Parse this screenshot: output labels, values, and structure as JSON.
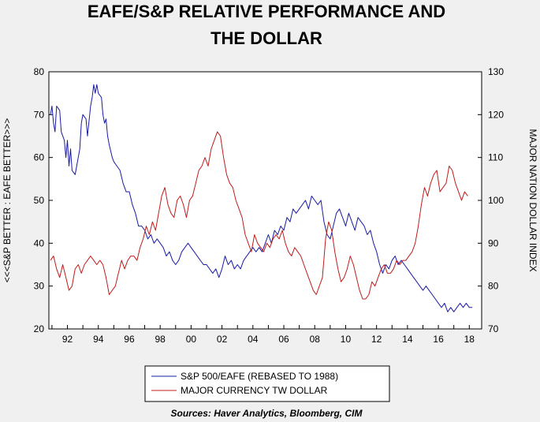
{
  "chart_data": {
    "type": "line",
    "title_lines": [
      "EAFE/S&P RELATIVE PERFORMANCE AND",
      "THE DOLLAR"
    ],
    "ylabel_left": "<<<S&P BETTER : EAFE BETTER>>>",
    "ylabel_right": "MAJOR NATION DOLLAR INDEX",
    "ylim_left": [
      20,
      80
    ],
    "ylim_right": [
      70,
      130
    ],
    "yticks_left": [
      20,
      30,
      40,
      50,
      60,
      70,
      80
    ],
    "yticks_right": [
      70,
      80,
      90,
      100,
      110,
      120,
      130
    ],
    "xlim": [
      1990.8,
      2018.8
    ],
    "xticks": [
      {
        "x": 1992,
        "label": "92"
      },
      {
        "x": 1994,
        "label": "94"
      },
      {
        "x": 1996,
        "label": "96"
      },
      {
        "x": 1998,
        "label": "98"
      },
      {
        "x": 2000,
        "label": "00"
      },
      {
        "x": 2002,
        "label": "02"
      },
      {
        "x": 2004,
        "label": "04"
      },
      {
        "x": 2006,
        "label": "06"
      },
      {
        "x": 2008,
        "label": "08"
      },
      {
        "x": 2010,
        "label": "10"
      },
      {
        "x": 2012,
        "label": "12"
      },
      {
        "x": 2014,
        "label": "14"
      },
      {
        "x": 2016,
        "label": "16"
      },
      {
        "x": 2018,
        "label": "18"
      }
    ],
    "grid": false,
    "legend_position": "bottom",
    "series": [
      {
        "name": "S&P 500/EAFE (REBASED TO 1988)",
        "color": "#1a1aa6",
        "axis": "left",
        "points": [
          [
            1990.9,
            70
          ],
          [
            1991.0,
            72
          ],
          [
            1991.1,
            68
          ],
          [
            1991.2,
            66
          ],
          [
            1991.3,
            72
          ],
          [
            1991.5,
            71
          ],
          [
            1991.6,
            66
          ],
          [
            1991.8,
            64
          ],
          [
            1991.9,
            60
          ],
          [
            1992.0,
            64
          ],
          [
            1992.1,
            58
          ],
          [
            1992.2,
            62
          ],
          [
            1992.3,
            57
          ],
          [
            1992.5,
            56
          ],
          [
            1992.6,
            58
          ],
          [
            1992.8,
            62
          ],
          [
            1992.9,
            68
          ],
          [
            1993.0,
            70
          ],
          [
            1993.2,
            69
          ],
          [
            1993.3,
            65
          ],
          [
            1993.5,
            72
          ],
          [
            1993.6,
            74
          ],
          [
            1993.7,
            77
          ],
          [
            1993.8,
            75
          ],
          [
            1993.9,
            77
          ],
          [
            1994.0,
            75
          ],
          [
            1994.2,
            74
          ],
          [
            1994.3,
            70
          ],
          [
            1994.4,
            68
          ],
          [
            1994.5,
            69
          ],
          [
            1994.6,
            65
          ],
          [
            1994.7,
            63
          ],
          [
            1994.9,
            60
          ],
          [
            1995.0,
            59
          ],
          [
            1995.2,
            58
          ],
          [
            1995.4,
            57
          ],
          [
            1995.6,
            54
          ],
          [
            1995.8,
            52
          ],
          [
            1996.0,
            52
          ],
          [
            1996.2,
            49
          ],
          [
            1996.4,
            47
          ],
          [
            1996.6,
            44
          ],
          [
            1996.8,
            44
          ],
          [
            1997.0,
            43
          ],
          [
            1997.2,
            41
          ],
          [
            1997.4,
            42
          ],
          [
            1997.6,
            40
          ],
          [
            1997.8,
            41
          ],
          [
            1998.0,
            40
          ],
          [
            1998.2,
            39
          ],
          [
            1998.4,
            37
          ],
          [
            1998.6,
            38
          ],
          [
            1998.8,
            36
          ],
          [
            1999.0,
            35
          ],
          [
            1999.2,
            36
          ],
          [
            1999.4,
            38
          ],
          [
            1999.6,
            39
          ],
          [
            1999.8,
            40
          ],
          [
            2000.0,
            39
          ],
          [
            2000.2,
            38
          ],
          [
            2000.4,
            37
          ],
          [
            2000.6,
            36
          ],
          [
            2000.8,
            35
          ],
          [
            2001.0,
            35
          ],
          [
            2001.2,
            34
          ],
          [
            2001.4,
            33
          ],
          [
            2001.6,
            34
          ],
          [
            2001.8,
            32
          ],
          [
            2002.0,
            34
          ],
          [
            2002.2,
            37
          ],
          [
            2002.4,
            35
          ],
          [
            2002.6,
            36
          ],
          [
            2002.8,
            34
          ],
          [
            2003.0,
            35
          ],
          [
            2003.2,
            34
          ],
          [
            2003.4,
            36
          ],
          [
            2003.6,
            37
          ],
          [
            2003.8,
            38
          ],
          [
            2004.0,
            39
          ],
          [
            2004.2,
            38
          ],
          [
            2004.4,
            39
          ],
          [
            2004.6,
            38
          ],
          [
            2004.8,
            40
          ],
          [
            2005.0,
            42
          ],
          [
            2005.2,
            40
          ],
          [
            2005.4,
            43
          ],
          [
            2005.6,
            42
          ],
          [
            2005.8,
            44
          ],
          [
            2006.0,
            43
          ],
          [
            2006.2,
            46
          ],
          [
            2006.4,
            45
          ],
          [
            2006.6,
            48
          ],
          [
            2006.8,
            47
          ],
          [
            2007.0,
            48
          ],
          [
            2007.2,
            49
          ],
          [
            2007.4,
            50
          ],
          [
            2007.6,
            48
          ],
          [
            2007.8,
            51
          ],
          [
            2008.0,
            50
          ],
          [
            2008.2,
            49
          ],
          [
            2008.4,
            50
          ],
          [
            2008.6,
            45
          ],
          [
            2008.8,
            42
          ],
          [
            2009.0,
            41
          ],
          [
            2009.2,
            44
          ],
          [
            2009.4,
            47
          ],
          [
            2009.6,
            48
          ],
          [
            2009.8,
            46
          ],
          [
            2010.0,
            44
          ],
          [
            2010.2,
            47
          ],
          [
            2010.4,
            45
          ],
          [
            2010.6,
            43
          ],
          [
            2010.8,
            46
          ],
          [
            2011.0,
            45
          ],
          [
            2011.2,
            44
          ],
          [
            2011.4,
            42
          ],
          [
            2011.6,
            43
          ],
          [
            2011.8,
            40
          ],
          [
            2012.0,
            38
          ],
          [
            2012.2,
            35
          ],
          [
            2012.4,
            33
          ],
          [
            2012.6,
            35
          ],
          [
            2012.8,
            34
          ],
          [
            2013.0,
            36
          ],
          [
            2013.2,
            37
          ],
          [
            2013.4,
            35
          ],
          [
            2013.6,
            36
          ],
          [
            2013.8,
            35
          ],
          [
            2014.0,
            34
          ],
          [
            2014.2,
            33
          ],
          [
            2014.4,
            32
          ],
          [
            2014.6,
            31
          ],
          [
            2014.8,
            30
          ],
          [
            2015.0,
            29
          ],
          [
            2015.2,
            30
          ],
          [
            2015.4,
            29
          ],
          [
            2015.6,
            28
          ],
          [
            2015.8,
            27
          ],
          [
            2016.0,
            26
          ],
          [
            2016.2,
            25
          ],
          [
            2016.4,
            26
          ],
          [
            2016.6,
            24
          ],
          [
            2016.8,
            25
          ],
          [
            2017.0,
            24
          ],
          [
            2017.2,
            25
          ],
          [
            2017.4,
            26
          ],
          [
            2017.6,
            25
          ],
          [
            2017.8,
            26
          ],
          [
            2018.0,
            25
          ],
          [
            2018.2,
            25
          ]
        ]
      },
      {
        "name": "MAJOR CURRENCY TW DOLLAR",
        "color": "#c01c1c",
        "axis": "right",
        "points": [
          [
            1990.9,
            86
          ],
          [
            1991.1,
            87
          ],
          [
            1991.3,
            84
          ],
          [
            1991.5,
            82
          ],
          [
            1991.7,
            85
          ],
          [
            1991.9,
            82
          ],
          [
            1992.1,
            79
          ],
          [
            1992.3,
            80
          ],
          [
            1992.5,
            84
          ],
          [
            1992.7,
            85
          ],
          [
            1992.9,
            83
          ],
          [
            1993.1,
            85
          ],
          [
            1993.3,
            86
          ],
          [
            1993.5,
            87
          ],
          [
            1993.7,
            86
          ],
          [
            1993.9,
            85
          ],
          [
            1994.1,
            86
          ],
          [
            1994.3,
            85
          ],
          [
            1994.5,
            82
          ],
          [
            1994.7,
            78
          ],
          [
            1994.9,
            79
          ],
          [
            1995.1,
            80
          ],
          [
            1995.3,
            83
          ],
          [
            1995.5,
            86
          ],
          [
            1995.7,
            84
          ],
          [
            1995.9,
            86
          ],
          [
            1996.1,
            87
          ],
          [
            1996.3,
            87
          ],
          [
            1996.5,
            86
          ],
          [
            1996.7,
            89
          ],
          [
            1996.9,
            91
          ],
          [
            1997.1,
            94
          ],
          [
            1997.3,
            92
          ],
          [
            1997.5,
            95
          ],
          [
            1997.7,
            93
          ],
          [
            1997.9,
            97
          ],
          [
            1998.1,
            101
          ],
          [
            1998.3,
            103
          ],
          [
            1998.5,
            99
          ],
          [
            1998.7,
            97
          ],
          [
            1998.9,
            96
          ],
          [
            1999.1,
            100
          ],
          [
            1999.3,
            101
          ],
          [
            1999.5,
            99
          ],
          [
            1999.7,
            96
          ],
          [
            1999.9,
            100
          ],
          [
            2000.1,
            101
          ],
          [
            2000.3,
            104
          ],
          [
            2000.5,
            107
          ],
          [
            2000.7,
            108
          ],
          [
            2000.9,
            110
          ],
          [
            2001.1,
            108
          ],
          [
            2001.3,
            112
          ],
          [
            2001.5,
            114
          ],
          [
            2001.7,
            116
          ],
          [
            2001.9,
            115
          ],
          [
            2002.1,
            110
          ],
          [
            2002.3,
            106
          ],
          [
            2002.5,
            104
          ],
          [
            2002.7,
            103
          ],
          [
            2002.9,
            100
          ],
          [
            2003.1,
            98
          ],
          [
            2003.3,
            96
          ],
          [
            2003.5,
            92
          ],
          [
            2003.7,
            90
          ],
          [
            2003.9,
            88
          ],
          [
            2004.1,
            92
          ],
          [
            2004.3,
            90
          ],
          [
            2004.5,
            89
          ],
          [
            2004.7,
            88
          ],
          [
            2004.9,
            90
          ],
          [
            2005.1,
            89
          ],
          [
            2005.3,
            91
          ],
          [
            2005.5,
            92
          ],
          [
            2005.7,
            91
          ],
          [
            2005.9,
            93
          ],
          [
            2006.1,
            90
          ],
          [
            2006.3,
            88
          ],
          [
            2006.5,
            87
          ],
          [
            2006.7,
            89
          ],
          [
            2006.9,
            88
          ],
          [
            2007.1,
            87
          ],
          [
            2007.3,
            85
          ],
          [
            2007.5,
            83
          ],
          [
            2007.7,
            81
          ],
          [
            2007.9,
            79
          ],
          [
            2008.1,
            78
          ],
          [
            2008.3,
            80
          ],
          [
            2008.5,
            82
          ],
          [
            2008.7,
            91
          ],
          [
            2008.9,
            95
          ],
          [
            2009.1,
            93
          ],
          [
            2009.3,
            88
          ],
          [
            2009.5,
            84
          ],
          [
            2009.7,
            81
          ],
          [
            2009.9,
            82
          ],
          [
            2010.1,
            84
          ],
          [
            2010.3,
            87
          ],
          [
            2010.5,
            85
          ],
          [
            2010.7,
            82
          ],
          [
            2010.9,
            79
          ],
          [
            2011.1,
            77
          ],
          [
            2011.3,
            77
          ],
          [
            2011.5,
            78
          ],
          [
            2011.7,
            81
          ],
          [
            2011.9,
            80
          ],
          [
            2012.1,
            82
          ],
          [
            2012.3,
            84
          ],
          [
            2012.5,
            85
          ],
          [
            2012.7,
            83
          ],
          [
            2012.9,
            83
          ],
          [
            2013.1,
            84
          ],
          [
            2013.3,
            86
          ],
          [
            2013.5,
            85
          ],
          [
            2013.7,
            86
          ],
          [
            2013.9,
            86
          ],
          [
            2014.1,
            87
          ],
          [
            2014.3,
            88
          ],
          [
            2014.5,
            90
          ],
          [
            2014.7,
            94
          ],
          [
            2014.9,
            99
          ],
          [
            2015.1,
            103
          ],
          [
            2015.3,
            101
          ],
          [
            2015.5,
            104
          ],
          [
            2015.7,
            106
          ],
          [
            2015.9,
            107
          ],
          [
            2016.1,
            102
          ],
          [
            2016.3,
            103
          ],
          [
            2016.5,
            104
          ],
          [
            2016.7,
            108
          ],
          [
            2016.9,
            107
          ],
          [
            2017.1,
            104
          ],
          [
            2017.3,
            102
          ],
          [
            2017.5,
            100
          ],
          [
            2017.7,
            102
          ],
          [
            2017.9,
            101
          ]
        ]
      }
    ]
  },
  "sources": "Sources:  Haver Analytics, Bloomberg, CIM"
}
